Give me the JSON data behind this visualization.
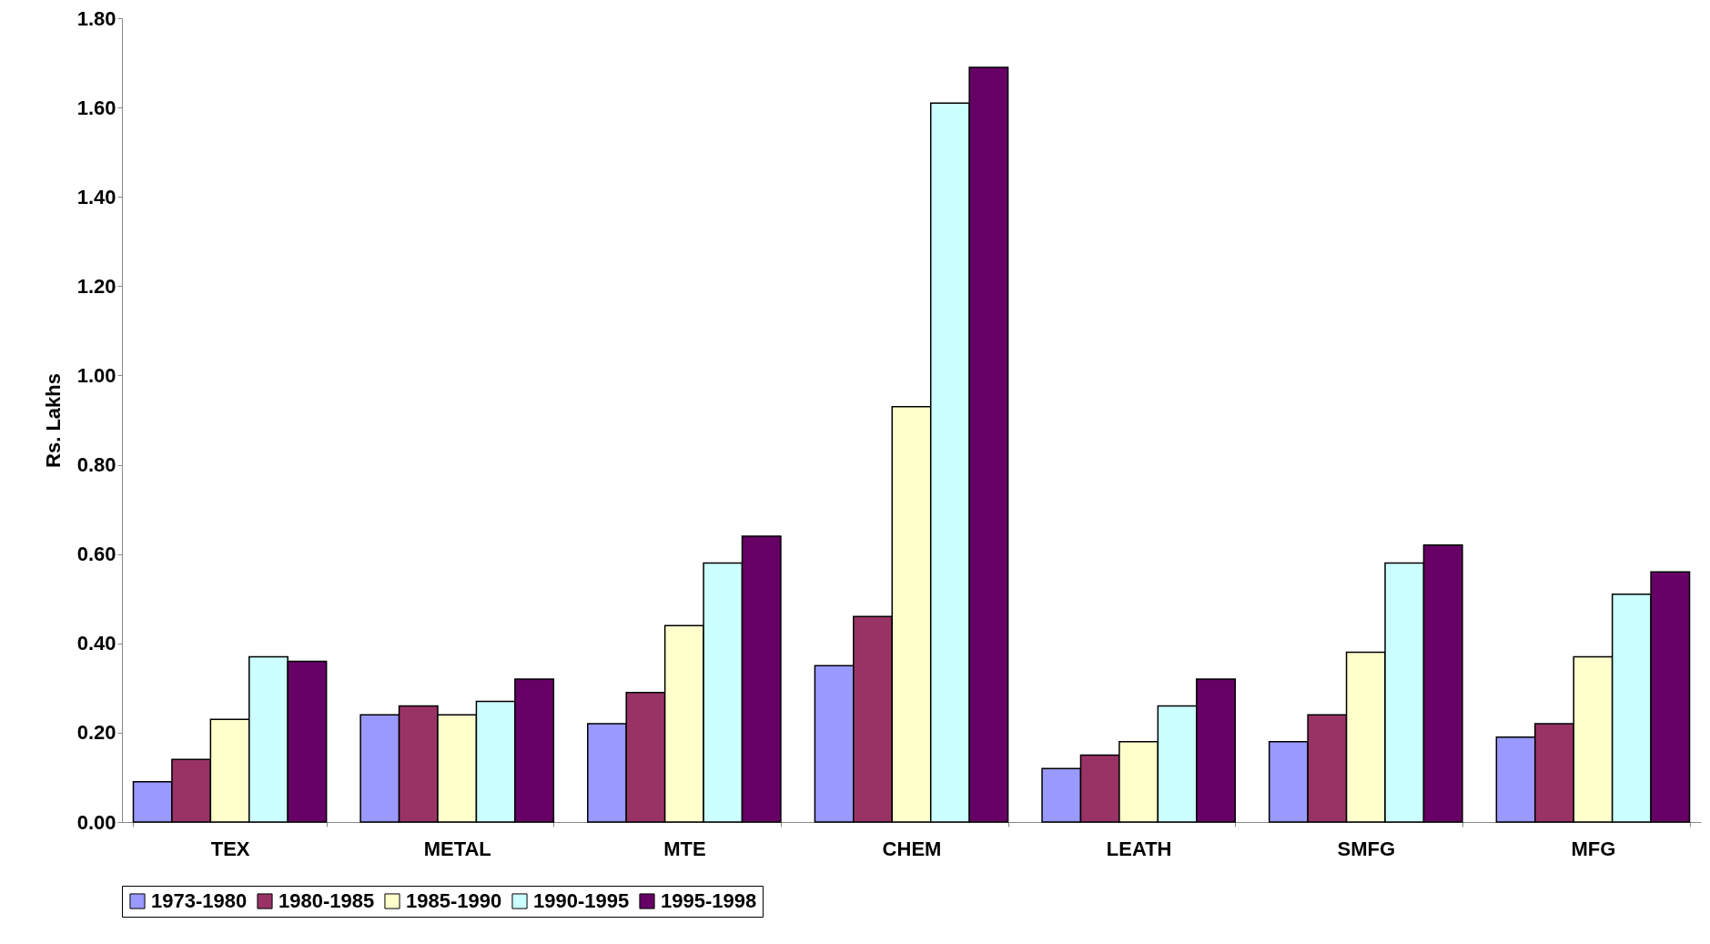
{
  "chart_data": {
    "type": "bar",
    "ylabel": "Rs. Lakhs",
    "categories": [
      "TEX",
      "METAL",
      "MTE",
      "CHEM",
      "LEATH",
      "SMFG",
      "MFG"
    ],
    "series": [
      {
        "name": "1973-1980",
        "color": "#9999ff",
        "values": [
          0.09,
          0.24,
          0.22,
          0.35,
          0.12,
          0.18,
          0.19
        ]
      },
      {
        "name": "1980-1985",
        "color": "#993366",
        "values": [
          0.14,
          0.26,
          0.29,
          0.46,
          0.15,
          0.24,
          0.22
        ]
      },
      {
        "name": "1985-1990",
        "color": "#ffffcc",
        "values": [
          0.23,
          0.24,
          0.44,
          0.93,
          0.18,
          0.38,
          0.37
        ]
      },
      {
        "name": "1990-1995",
        "color": "#ccffff",
        "values": [
          0.37,
          0.27,
          0.58,
          1.61,
          0.26,
          0.58,
          0.51
        ]
      },
      {
        "name": "1995-1998",
        "color": "#660066",
        "values": [
          0.36,
          0.32,
          0.64,
          1.69,
          0.32,
          0.62,
          0.56
        ]
      }
    ],
    "ylim": [
      0,
      1.8
    ],
    "yticks": [
      {
        "value": 0,
        "label": "0.00"
      },
      {
        "value": 0.2,
        "label": "0.20"
      },
      {
        "value": 0.4,
        "label": "0.40"
      },
      {
        "value": 0.6,
        "label": "0.60"
      },
      {
        "value": 0.8,
        "label": "0.80"
      },
      {
        "value": 1,
        "label": "1.00"
      },
      {
        "value": 1.2,
        "label": "1.20"
      },
      {
        "value": 1.4,
        "label": "1.40"
      },
      {
        "value": 1.6,
        "label": "1.60"
      },
      {
        "value": 1.8,
        "label": "1.80"
      }
    ],
    "grid": false,
    "legend": "bottom"
  }
}
